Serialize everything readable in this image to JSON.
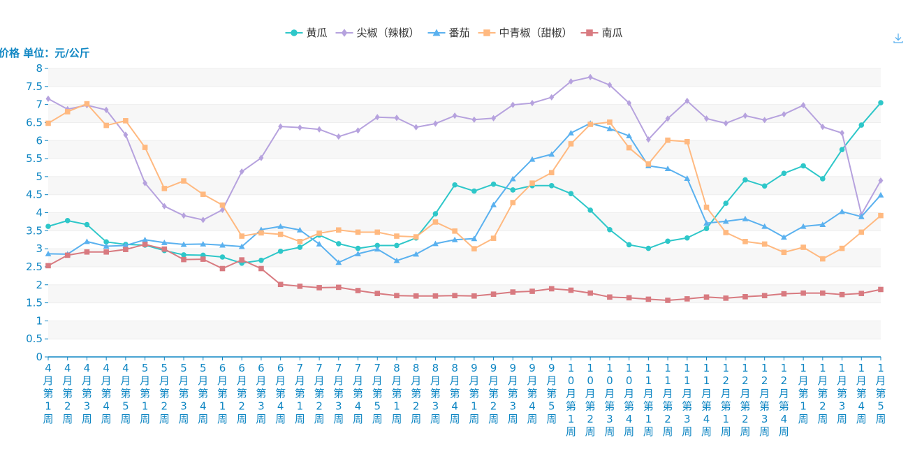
{
  "chart_data": {
    "type": "line",
    "ylabel": "价格 单位：元/公斤",
    "ylim": [
      0,
      8
    ],
    "yticks": [
      "0",
      "0.5",
      "1",
      "1.5",
      "2",
      "2.5",
      "3",
      "3.5",
      "4",
      "4.5",
      "5",
      "5.5",
      "6",
      "6.5",
      "7",
      "7.5",
      "8"
    ],
    "grid": "horizontal bands",
    "legend_position": "top-center",
    "categories": [
      "4月第1周",
      "4月第2周",
      "4月第3周",
      "4月第4周",
      "4月第5周",
      "5月第1周",
      "5月第2周",
      "5月第3周",
      "5月第4周",
      "6月第1周",
      "6月第2周",
      "6月第3周",
      "6月第4周",
      "7月第1周",
      "7月第2周",
      "7月第3周",
      "7月第4周",
      "7月第5周",
      "8月第1周",
      "8月第2周",
      "8月第3周",
      "8月第4周",
      "9月第1周",
      "9月第2周",
      "9月第3周",
      "9月第4周",
      "9月第5周",
      "10月第1周",
      "10月第2周",
      "10月第3周",
      "10月第4周",
      "11月第1周",
      "11月第2周",
      "11月第3周",
      "11月第4周",
      "12月第1周",
      "12月第2周",
      "12月第3周",
      "12月第4周",
      "1月第1周",
      "1月第2周",
      "1月第3周",
      "1月第4周",
      "1月第5周"
    ],
    "series": [
      {
        "name": "黄瓜",
        "color": "#2ec7c9",
        "marker": "circle",
        "values": [
          3.62,
          3.78,
          3.67,
          3.19,
          3.12,
          3.1,
          2.95,
          2.83,
          2.82,
          2.77,
          2.6,
          2.68,
          2.93,
          3.04,
          3.38,
          3.14,
          3.01,
          3.09,
          3.09,
          3.3,
          3.97,
          4.77,
          4.6,
          4.79,
          4.63,
          4.75,
          4.75,
          4.53,
          4.07,
          3.53,
          3.11,
          3.01,
          3.21,
          3.3,
          3.56,
          4.26,
          4.91,
          4.74,
          5.09,
          5.3,
          4.94,
          5.75,
          6.43,
          7.05
        ]
      },
      {
        "name": "尖椒（辣椒）",
        "color": "#b6a2de",
        "marker": "diamond",
        "values": [
          7.16,
          6.87,
          6.98,
          6.85,
          6.16,
          4.82,
          4.18,
          3.92,
          3.8,
          4.08,
          5.14,
          5.52,
          6.39,
          6.36,
          6.31,
          6.11,
          6.28,
          6.65,
          6.63,
          6.37,
          6.47,
          6.69,
          6.58,
          6.62,
          6.99,
          7.04,
          7.2,
          7.64,
          7.76,
          7.54,
          7.04,
          6.03,
          6.61,
          7.1,
          6.61,
          6.48,
          6.69,
          6.57,
          6.73,
          6.98,
          6.38,
          6.21,
          3.95,
          4.89
        ]
      },
      {
        "name": "番茄",
        "color": "#5ab1ef",
        "marker": "triangle",
        "values": [
          2.86,
          2.85,
          3.2,
          3.07,
          3.09,
          3.25,
          3.17,
          3.12,
          3.13,
          3.1,
          3.06,
          3.53,
          3.62,
          3.52,
          3.13,
          2.62,
          2.86,
          2.99,
          2.67,
          2.85,
          3.14,
          3.25,
          3.28,
          4.22,
          4.94,
          5.48,
          5.62,
          6.21,
          6.48,
          6.33,
          6.13,
          5.3,
          5.22,
          4.95,
          3.71,
          3.76,
          3.83,
          3.62,
          3.32,
          3.62,
          3.67,
          4.03,
          3.89,
          4.49
        ]
      },
      {
        "name": "中青椒（甜椒）",
        "color": "#ffb980",
        "marker": "square",
        "values": [
          6.48,
          6.8,
          7.02,
          6.42,
          6.55,
          5.81,
          4.67,
          4.88,
          4.51,
          4.21,
          3.35,
          3.44,
          3.4,
          3.2,
          3.43,
          3.52,
          3.46,
          3.46,
          3.35,
          3.33,
          3.74,
          3.49,
          3.0,
          3.29,
          4.28,
          4.82,
          5.11,
          5.91,
          6.45,
          6.51,
          5.8,
          5.35,
          6.01,
          5.97,
          4.15,
          3.45,
          3.2,
          3.13,
          2.9,
          3.04,
          2.72,
          3.01,
          3.46,
          3.92
        ]
      },
      {
        "name": "南瓜",
        "color": "#d87a80",
        "marker": "square",
        "values": [
          2.53,
          2.82,
          2.91,
          2.91,
          2.98,
          3.12,
          2.99,
          2.7,
          2.71,
          2.45,
          2.69,
          2.45,
          2.01,
          1.96,
          1.92,
          1.93,
          1.84,
          1.76,
          1.7,
          1.69,
          1.69,
          1.7,
          1.69,
          1.74,
          1.8,
          1.82,
          1.89,
          1.85,
          1.77,
          1.66,
          1.64,
          1.6,
          1.57,
          1.61,
          1.66,
          1.63,
          1.67,
          1.7,
          1.75,
          1.77,
          1.77,
          1.73,
          1.76,
          1.87
        ]
      }
    ]
  },
  "toolbar": {
    "icon": "download-icon"
  }
}
